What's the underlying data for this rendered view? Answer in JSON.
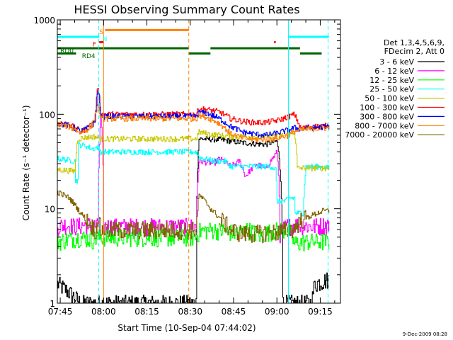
{
  "chart_data": {
    "type": "line",
    "title": "HESSI Observing Summary Count Rates",
    "xlabel": "Start Time (10-Sep-04 07:44:02)",
    "ylabel": "Count Rate (s⁻¹ detector⁻¹)",
    "x_unit": "minutes after 07:44:02",
    "xlim": [
      0,
      98
    ],
    "ylim": [
      1,
      1000
    ],
    "yscale": "log",
    "x_ticks": [
      {
        "x": 1,
        "label": "07:45"
      },
      {
        "x": 16,
        "label": "08:00"
      },
      {
        "x": 31,
        "label": "08:15"
      },
      {
        "x": 46,
        "label": "08:30"
      },
      {
        "x": 61,
        "label": "08:45"
      },
      {
        "x": 76,
        "label": "09:00"
      },
      {
        "x": 91,
        "label": "09:15"
      }
    ],
    "y_ticks": [
      {
        "y": 1,
        "label": "1"
      },
      {
        "y": 10,
        "label": "10"
      },
      {
        "y": 100,
        "label": "100"
      },
      {
        "y": 1000,
        "label": "1000"
      }
    ],
    "legend_header": [
      "Det 1,3,4,5,6,9,",
      "FDecim 2, Att 0"
    ],
    "legend_position": "right",
    "series": [
      {
        "name": "3 - 6 keV",
        "color": "#000000",
        "values": [
          [
            0,
            1.6
          ],
          [
            8,
            1
          ],
          [
            48,
            1
          ],
          [
            49,
            55
          ],
          [
            56,
            54
          ],
          [
            64,
            50
          ],
          [
            72,
            48
          ],
          [
            76,
            52
          ],
          [
            78,
            1
          ],
          [
            88,
            1
          ],
          [
            89,
            1.6
          ],
          [
            94,
            1.8
          ]
        ]
      },
      {
        "name": "6 - 12 keV",
        "color": "#ff00ff",
        "values": [
          [
            0,
            6.5
          ],
          [
            3,
            6.8
          ],
          [
            6,
            6.5
          ],
          [
            10,
            6.8
          ],
          [
            14,
            6.5
          ],
          [
            15,
            90
          ],
          [
            16,
            6.5
          ],
          [
            48,
            6.5
          ],
          [
            49,
            32
          ],
          [
            54,
            30
          ],
          [
            56,
            34
          ],
          [
            60,
            28
          ],
          [
            63,
            32
          ],
          [
            65,
            22
          ],
          [
            69,
            30
          ],
          [
            72,
            26
          ],
          [
            75,
            36
          ],
          [
            76,
            40
          ],
          [
            77,
            5.5
          ],
          [
            79,
            6.5
          ],
          [
            82,
            6.8
          ],
          [
            88,
            6.5
          ],
          [
            94,
            6.8
          ]
        ]
      },
      {
        "name": "12 - 25 keV",
        "color": "#00ff00",
        "values": [
          [
            0,
            4.5
          ],
          [
            4,
            4.8
          ],
          [
            8,
            5
          ],
          [
            12,
            4.7
          ],
          [
            15,
            5
          ],
          [
            48,
            5
          ],
          [
            49,
            5.8
          ],
          [
            54,
            6
          ],
          [
            58,
            5.8
          ],
          [
            62,
            5.5
          ],
          [
            66,
            6
          ],
          [
            70,
            5.2
          ],
          [
            74,
            5.8
          ],
          [
            77,
            6
          ],
          [
            80,
            6
          ],
          [
            82,
            4.3
          ],
          [
            86,
            4.5
          ],
          [
            90,
            4.5
          ],
          [
            94,
            4.5
          ]
        ]
      },
      {
        "name": "25 - 50 keV",
        "color": "#00ffff",
        "values": [
          [
            0,
            34
          ],
          [
            6,
            32
          ],
          [
            6.1,
            20
          ],
          [
            7,
            20
          ],
          [
            7.1,
            48
          ],
          [
            10,
            46
          ],
          [
            12,
            43
          ],
          [
            14,
            45
          ],
          [
            15,
            40
          ],
          [
            48,
            40
          ],
          [
            49,
            35
          ],
          [
            52,
            33
          ],
          [
            55,
            32
          ],
          [
            58,
            32
          ],
          [
            60,
            28
          ],
          [
            64,
            28
          ],
          [
            70,
            28
          ],
          [
            74,
            28
          ],
          [
            75.5,
            26
          ],
          [
            76,
            12
          ],
          [
            79,
            12
          ],
          [
            80,
            13
          ],
          [
            82,
            13
          ],
          [
            82.1,
            9
          ],
          [
            84,
            9
          ],
          [
            85,
            9
          ],
          [
            86,
            28
          ],
          [
            90,
            28
          ],
          [
            94,
            27
          ]
        ]
      },
      {
        "name": "50 - 100 keV",
        "color": "#c8c800",
        "values": [
          [
            0,
            26
          ],
          [
            6,
            25
          ],
          [
            7,
            55
          ],
          [
            10,
            57
          ],
          [
            13,
            58
          ],
          [
            15,
            55
          ],
          [
            48,
            55
          ],
          [
            49,
            65
          ],
          [
            52,
            62
          ],
          [
            56,
            60
          ],
          [
            60,
            58
          ],
          [
            66,
            58
          ],
          [
            72,
            58
          ],
          [
            76,
            60
          ],
          [
            79,
            60
          ],
          [
            81,
            62
          ],
          [
            82,
            66
          ],
          [
            83,
            27
          ],
          [
            88,
            27
          ],
          [
            94,
            27
          ]
        ]
      },
      {
        "name": "100 - 300 keV",
        "color": "#ff0000",
        "values": [
          [
            0,
            82
          ],
          [
            4,
            78
          ],
          [
            8,
            66
          ],
          [
            10,
            70
          ],
          [
            12,
            80
          ],
          [
            13,
            90
          ],
          [
            14,
            200
          ],
          [
            15,
            100
          ],
          [
            48,
            100
          ],
          [
            49,
            115
          ],
          [
            52,
            112
          ],
          [
            56,
            106
          ],
          [
            60,
            90
          ],
          [
            64,
            84
          ],
          [
            68,
            82
          ],
          [
            72,
            82
          ],
          [
            76,
            86
          ],
          [
            78,
            90
          ],
          [
            80,
            95
          ],
          [
            82,
            100
          ],
          [
            84,
            72
          ],
          [
            88,
            74
          ],
          [
            94,
            76
          ]
        ]
      },
      {
        "name": "300 - 800 keV",
        "color": "#0000ff",
        "values": [
          [
            0,
            80
          ],
          [
            4,
            76
          ],
          [
            8,
            66
          ],
          [
            10,
            70
          ],
          [
            12,
            78
          ],
          [
            13,
            82
          ],
          [
            14,
            180
          ],
          [
            15,
            95
          ],
          [
            48,
            95
          ],
          [
            49,
            105
          ],
          [
            52,
            102
          ],
          [
            56,
            90
          ],
          [
            60,
            74
          ],
          [
            64,
            65
          ],
          [
            68,
            62
          ],
          [
            72,
            60
          ],
          [
            76,
            63
          ],
          [
            78,
            66
          ],
          [
            80,
            68
          ],
          [
            82,
            72
          ],
          [
            84,
            70
          ],
          [
            88,
            72
          ],
          [
            94,
            74
          ]
        ]
      },
      {
        "name": "800 - 7000 keV",
        "color": "#ff8000",
        "values": [
          [
            0,
            78
          ],
          [
            4,
            74
          ],
          [
            8,
            64
          ],
          [
            10,
            68
          ],
          [
            12,
            76
          ],
          [
            14,
            120
          ],
          [
            15,
            90
          ],
          [
            48,
            90
          ],
          [
            49,
            98
          ],
          [
            52,
            92
          ],
          [
            56,
            80
          ],
          [
            60,
            62
          ],
          [
            64,
            56
          ],
          [
            68,
            54
          ],
          [
            72,
            54
          ],
          [
            76,
            56
          ],
          [
            80,
            60
          ],
          [
            82,
            66
          ],
          [
            84,
            68
          ],
          [
            88,
            70
          ],
          [
            94,
            72
          ]
        ]
      },
      {
        "name": "7000 - 20000 keV",
        "color": "#806000",
        "values": [
          [
            0,
            15
          ],
          [
            4,
            13
          ],
          [
            8,
            9
          ],
          [
            11,
            7
          ],
          [
            13,
            6
          ],
          [
            14.5,
            7
          ],
          [
            15,
            6
          ],
          [
            48,
            6
          ],
          [
            49,
            14
          ],
          [
            51,
            12
          ],
          [
            53,
            10
          ],
          [
            56,
            8
          ],
          [
            60,
            6
          ],
          [
            64,
            5.5
          ],
          [
            68,
            5.5
          ],
          [
            72,
            5.6
          ],
          [
            76,
            5.7
          ],
          [
            80,
            6
          ],
          [
            82,
            6.2
          ],
          [
            84,
            7.5
          ],
          [
            88,
            8.5
          ],
          [
            92,
            9.5
          ],
          [
            94,
            9.5
          ]
        ]
      }
    ],
    "state_bars": [
      {
        "label": "S",
        "color": "#ff8000",
        "level": 780,
        "segments": [
          [
            16.5,
            45.5
          ]
        ]
      },
      {
        "label": "N",
        "color": "#00ffff",
        "level": 660,
        "segments": [
          [
            0,
            14.5
          ],
          [
            80,
            94
          ]
        ]
      },
      {
        "label": "F",
        "color": "#ff0000",
        "level": 580,
        "segments": [
          [
            14.5,
            16
          ],
          [
            75,
            75.6
          ]
        ]
      },
      {
        "label": "RD0",
        "color": "#006400",
        "level": 500,
        "segments": [
          [
            0,
            6.5
          ],
          [
            6.5,
            45.5
          ],
          [
            53,
            84
          ]
        ]
      },
      {
        "label": "RD4",
        "color": "#006400",
        "level": 440,
        "segments": [
          [
            0,
            6.5
          ],
          [
            45.5,
            53
          ],
          [
            84,
            91.5
          ]
        ]
      }
    ],
    "vertical_lines": [
      {
        "x": 14.3,
        "color": "#00ffff",
        "style": "dashed"
      },
      {
        "x": 16,
        "color": "#ff8000",
        "style": "solid"
      },
      {
        "x": 45.5,
        "color": "#ff8000",
        "style": "dashed"
      },
      {
        "x": 80,
        "color": "#00ffff",
        "style": "solid"
      },
      {
        "x": 93.7,
        "color": "#00ffff",
        "style": "dashed"
      }
    ]
  },
  "footer_date": "9-Dec-2009 08:28"
}
